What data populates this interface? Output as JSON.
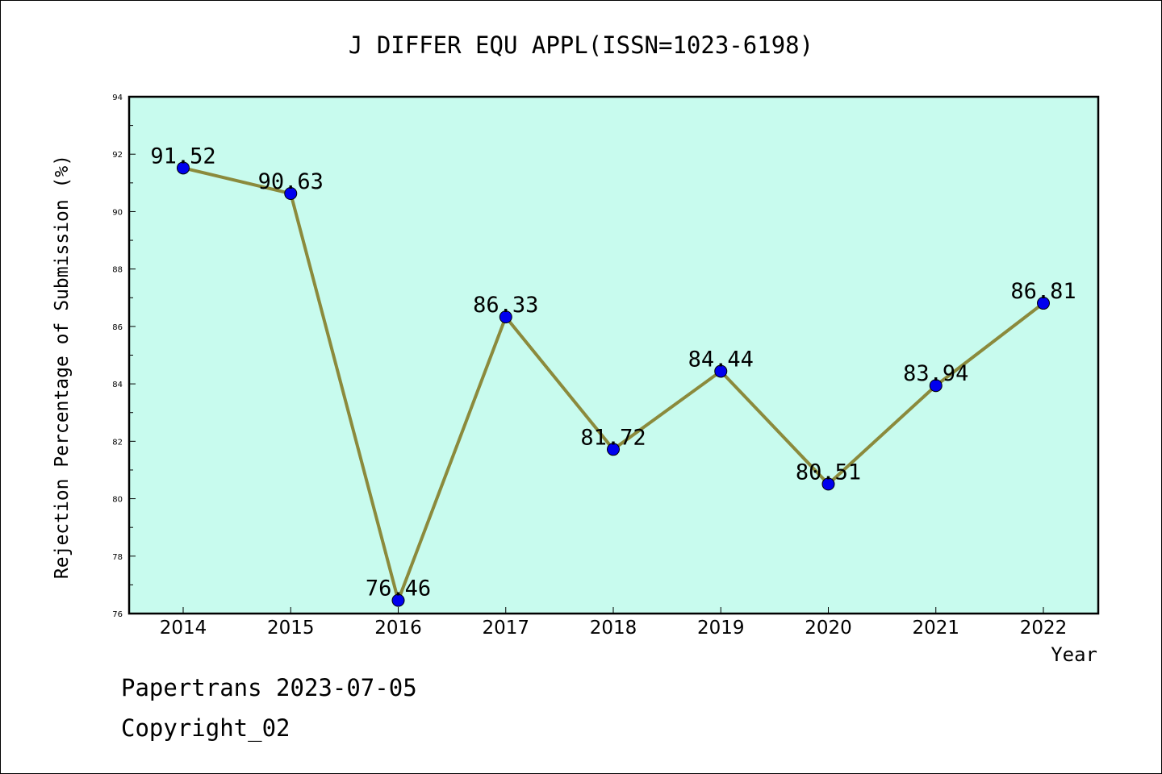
{
  "chart_data": {
    "type": "line",
    "title": "J DIFFER EQU APPL(ISSN=1023-6198)",
    "xlabel": "Year",
    "ylabel": "Rejection Percentage of Submission (%)",
    "categories": [
      "2014",
      "2015",
      "2016",
      "2017",
      "2018",
      "2019",
      "2020",
      "2021",
      "2022"
    ],
    "values": [
      91.52,
      90.63,
      76.46,
      86.33,
      81.72,
      84.44,
      80.51,
      83.94,
      86.81
    ],
    "data_labels": [
      "91.52",
      "90.63",
      "76.46",
      "86.33",
      "81.72",
      "84.44",
      "80.51",
      "83.94",
      "86.81"
    ],
    "ylim": [
      76,
      94
    ],
    "yticks": [
      "76",
      "78",
      "80",
      "82",
      "84",
      "86",
      "88",
      "90",
      "92",
      "94"
    ],
    "grid": false,
    "colors": {
      "plot_background": "#c8fbee",
      "line": "#8b8a3c",
      "marker": "#0000ee"
    }
  },
  "footer": {
    "line1": "Papertrans 2023-07-05",
    "line2": "Copyright_02"
  }
}
